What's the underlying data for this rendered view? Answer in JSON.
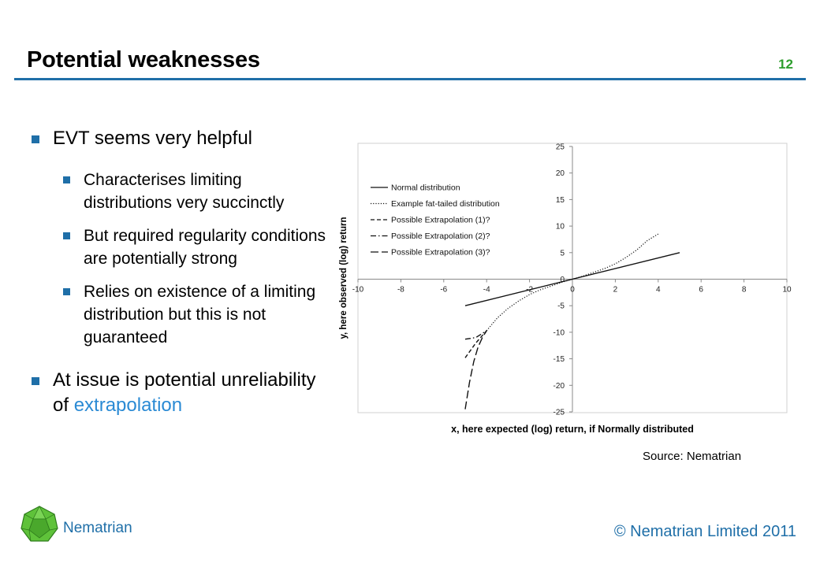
{
  "slide": {
    "title": "Potential weaknesses",
    "page_number": "12",
    "source": "Source: Nematrian",
    "brand": "Nematrian",
    "copyright": "© Nematrian Limited 2011"
  },
  "bullets": [
    {
      "text": "EVT seems very helpful"
    },
    {
      "text": "Characterises limiting distributions very succinctly"
    },
    {
      "text": "But required regularity conditions are potentially strong"
    },
    {
      "text": "Relies on existence of a limiting distribution but this is not guaranteed"
    },
    {
      "text_before": "At issue is potential unreliability of ",
      "link": "extrapolation"
    }
  ],
  "colors": {
    "accent": "#1f6fa8",
    "link": "#2a8ad4",
    "page_number": "#2e9e2e",
    "logo": "#5fc23a"
  },
  "chart_data": {
    "type": "line",
    "xlabel": "x, here expected (log) return, if Normally distributed",
    "ylabel": "y, here observed (log) return",
    "xlim": [
      -10,
      10
    ],
    "ylim": [
      -25,
      25
    ],
    "xticks": [
      -10,
      -8,
      -6,
      -4,
      -2,
      0,
      2,
      4,
      6,
      8,
      10
    ],
    "yticks": [
      -25,
      -20,
      -15,
      -10,
      -5,
      0,
      5,
      10,
      15,
      20,
      25
    ],
    "grid": false,
    "legend_position": "top-left",
    "series": [
      {
        "name": "Normal distribution",
        "style": "solid",
        "x": [
          -5,
          5
        ],
        "y": [
          -5,
          5
        ]
      },
      {
        "name": "Example fat-tailed distribution",
        "style": "dotted",
        "x": [
          -4,
          -3.5,
          -3,
          -2.5,
          -2,
          -1.5,
          -1,
          -0.5,
          0,
          0.5,
          1,
          1.5,
          2,
          2.5,
          3,
          3.5,
          4
        ],
        "y": [
          -9.7,
          -7.3,
          -5.5,
          -4.1,
          -2.9,
          -2.0,
          -1.3,
          -0.6,
          0,
          0.6,
          1.3,
          2.0,
          2.9,
          4.1,
          5.5,
          7.3,
          8.5
        ]
      },
      {
        "name": "Possible Extrapolation (1)?",
        "style": "dashed",
        "x": [
          -5,
          -4.5,
          -4
        ],
        "y": [
          -14.8,
          -12.0,
          -9.7
        ]
      },
      {
        "name": "Possible Extrapolation (2)?",
        "style": "dashdot",
        "x": [
          -5,
          -4.5,
          -4
        ],
        "y": [
          -11.3,
          -11.0,
          -9.7
        ]
      },
      {
        "name": "Possible Extrapolation (3)?",
        "style": "longdash",
        "x": [
          -5,
          -4.8,
          -4.6,
          -4.4,
          -4.2,
          -4
        ],
        "y": [
          -24.5,
          -19.5,
          -15.5,
          -12.8,
          -11.0,
          -9.7
        ]
      }
    ]
  }
}
